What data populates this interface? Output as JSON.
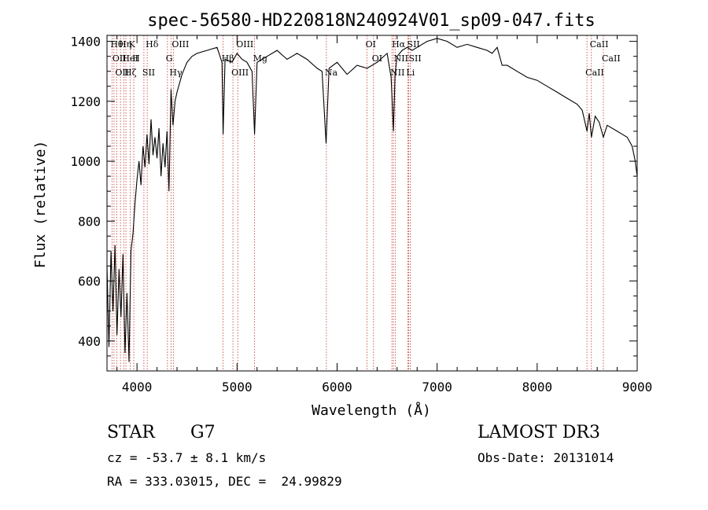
{
  "chart_data": {
    "type": "line",
    "title": "spec-56580-HD220818N240924V01_sp09-047.fits",
    "xlabel": "Wavelength (Å)",
    "ylabel": "Flux (relative)",
    "xlim": [
      3700,
      9000
    ],
    "ylim": [
      300,
      1420
    ],
    "x_ticks": [
      4000,
      5000,
      6000,
      7000,
      8000,
      9000
    ],
    "y_ticks": [
      400,
      600,
      800,
      1000,
      1200,
      1400
    ],
    "grid": false,
    "series": [
      {
        "x": [
          3700,
          3720,
          3740,
          3760,
          3780,
          3800,
          3820,
          3840,
          3860,
          3880,
          3900,
          3920,
          3940,
          3960,
          3980,
          4000,
          4020,
          4040,
          4060,
          4080,
          4100,
          4120,
          4140,
          4160,
          4180,
          4200,
          4220,
          4240,
          4260,
          4280,
          4300,
          4320,
          4340,
          4360,
          4380,
          4400,
          4450,
          4500,
          4550,
          4600,
          4700,
          4800,
          4850,
          4861,
          4880,
          4950,
          5000,
          5050,
          5100,
          5150,
          5175,
          5200,
          5300,
          5400,
          5500,
          5600,
          5700,
          5800,
          5850,
          5890,
          5920,
          6000,
          6100,
          6200,
          6300,
          6400,
          6500,
          6540,
          6563,
          6580,
          6600,
          6650,
          6700,
          6750,
          6800,
          6900,
          7000,
          7100,
          7200,
          7300,
          7400,
          7500,
          7550,
          7600,
          7650,
          7700,
          7800,
          7900,
          8000,
          8100,
          8200,
          8300,
          8400,
          8450,
          8498,
          8520,
          8542,
          8580,
          8620,
          8662,
          8700,
          8800,
          8850,
          8900,
          8950,
          8980,
          9000
        ],
        "y": [
          650,
          380,
          700,
          500,
          720,
          420,
          640,
          480,
          690,
          360,
          560,
          330,
          700,
          760,
          860,
          940,
          1000,
          920,
          1050,
          980,
          1090,
          990,
          1140,
          1020,
          1080,
          1010,
          1110,
          950,
          1060,
          980,
          1100,
          900,
          1240,
          1120,
          1200,
          1230,
          1290,
          1330,
          1350,
          1360,
          1370,
          1380,
          1330,
          1090,
          1340,
          1330,
          1360,
          1340,
          1330,
          1300,
          1090,
          1330,
          1350,
          1370,
          1340,
          1360,
          1340,
          1310,
          1300,
          1060,
          1310,
          1330,
          1290,
          1320,
          1310,
          1330,
          1360,
          1280,
          1100,
          1290,
          1350,
          1370,
          1380,
          1370,
          1380,
          1400,
          1410,
          1400,
          1380,
          1390,
          1380,
          1370,
          1360,
          1380,
          1320,
          1320,
          1300,
          1280,
          1270,
          1250,
          1230,
          1210,
          1190,
          1170,
          1100,
          1160,
          1080,
          1150,
          1130,
          1080,
          1120,
          1100,
          1090,
          1080,
          1050,
          1000,
          950
        ]
      }
    ],
    "lines": [
      {
        "w": 3750,
        "label": "Hθ"
      },
      {
        "w": 3770,
        "label": "OII"
      },
      {
        "w": 3797,
        "label": "OII"
      },
      {
        "w": 3835,
        "label": "Hη"
      },
      {
        "w": 3868,
        "label": "HeI"
      },
      {
        "w": 3889,
        "label": "Hζ"
      },
      {
        "w": 3933,
        "label": "K"
      },
      {
        "w": 3968,
        "label": "H"
      },
      {
        "w": 4069,
        "label": "SII"
      },
      {
        "w": 4102,
        "label": "Hδ"
      },
      {
        "w": 4304,
        "label": "G"
      },
      {
        "w": 4340,
        "label": "Hγ"
      },
      {
        "w": 4363,
        "label": "OIII"
      },
      {
        "w": 4861,
        "label": "Hβ"
      },
      {
        "w": 4959,
        "label": "OIII"
      },
      {
        "w": 5007,
        "label": "OIII"
      },
      {
        "w": 5175,
        "label": "Mg"
      },
      {
        "w": 5893,
        "label": "Na"
      },
      {
        "w": 6300,
        "label": "OI"
      },
      {
        "w": 6364,
        "label": "OI"
      },
      {
        "w": 6548,
        "label": "NII"
      },
      {
        "w": 6563,
        "label": "Hα"
      },
      {
        "w": 6583,
        "label": "NII"
      },
      {
        "w": 6707,
        "label": "Li"
      },
      {
        "w": 6716,
        "label": "SII"
      },
      {
        "w": 6731,
        "label": "SII"
      },
      {
        "w": 8498,
        "label": "CaII"
      },
      {
        "w": 8542,
        "label": "CaII"
      },
      {
        "w": 8662,
        "label": "CaII"
      }
    ]
  },
  "info": {
    "object_class": "STAR",
    "subclass": "G7",
    "redshift": "cz = -53.7 ± 8.1 km/s",
    "coords": "RA = 333.03015, DEC =  24.99829",
    "survey": "LAMOST DR3",
    "obs_date": "Obs-Date: 20131014"
  }
}
